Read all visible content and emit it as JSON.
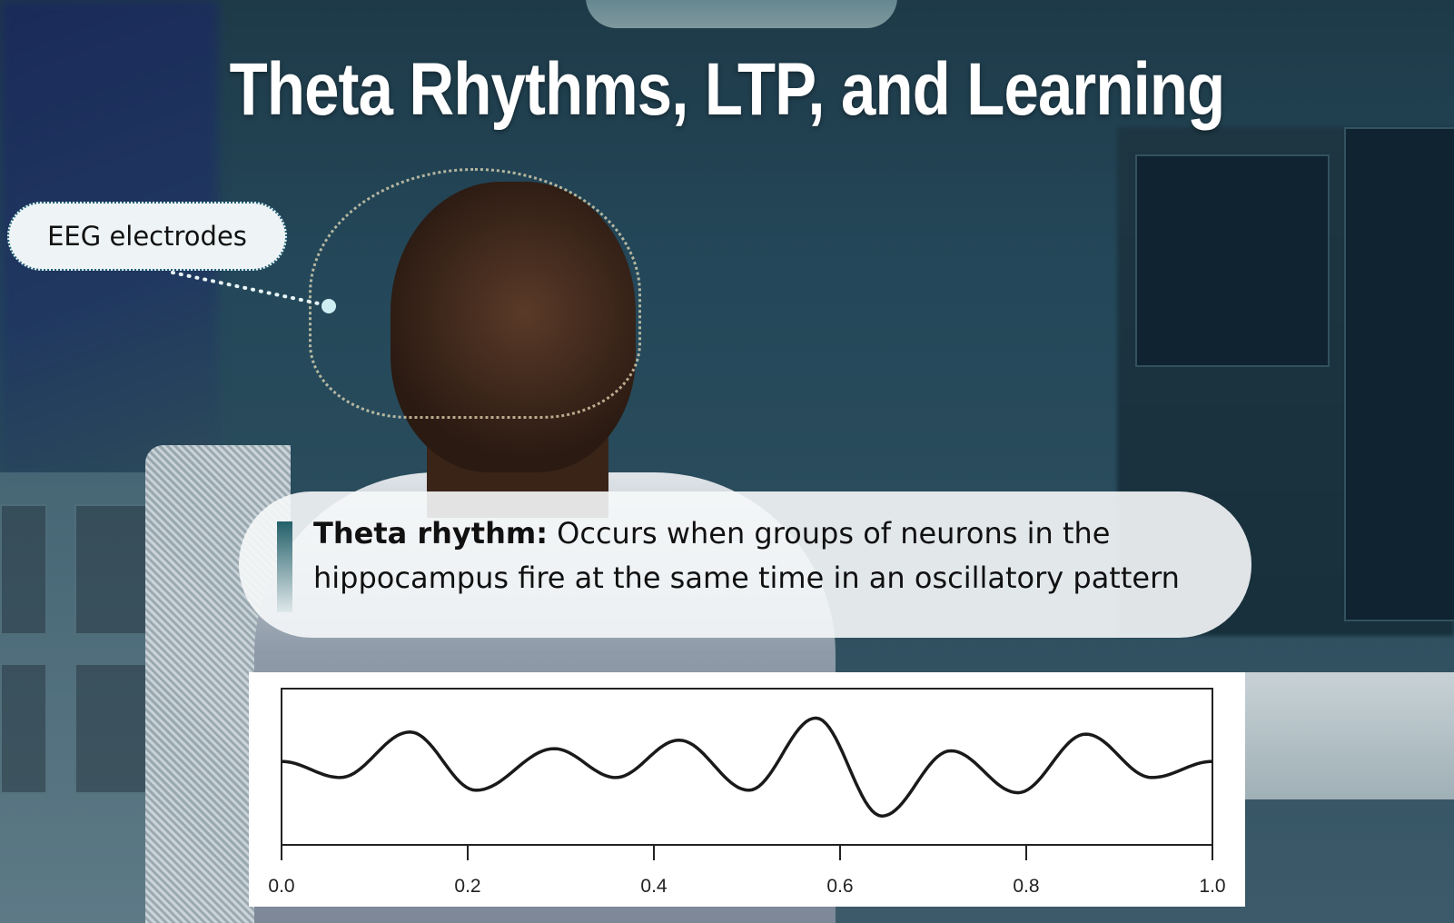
{
  "title": "Theta Rhythms, LTP, and Learning",
  "callout": {
    "label": "EEG electrodes"
  },
  "definition": {
    "term": "Theta rhythm:",
    "text": " Occurs when groups of neurons in the hippocampus fire at the same time in an oscillatory pattern"
  },
  "colors": {
    "accent": "#24606a",
    "callout_border": "#1f5f78"
  },
  "chart_data": {
    "type": "line",
    "title": "",
    "xlabel": "",
    "ylabel": "",
    "xlim": [
      0.0,
      1.0
    ],
    "ylim": [
      -2.75,
      2.4
    ],
    "x_ticks": [
      "0.0",
      "0.2",
      "0.4",
      "0.6",
      "0.8",
      "1.0"
    ],
    "grid": false,
    "series": [
      {
        "x": [
          0.0,
          0.063,
          0.138,
          0.209,
          0.293,
          0.359,
          0.427,
          0.502,
          0.574,
          0.645,
          0.719,
          0.791,
          0.864,
          0.935,
          1.0
        ],
        "y": [
          0.0,
          -0.53,
          0.97,
          -0.95,
          0.42,
          -0.53,
          0.7,
          -0.95,
          1.43,
          -1.8,
          0.35,
          -1.03,
          0.9,
          -0.53,
          0.0
        ]
      }
    ]
  }
}
